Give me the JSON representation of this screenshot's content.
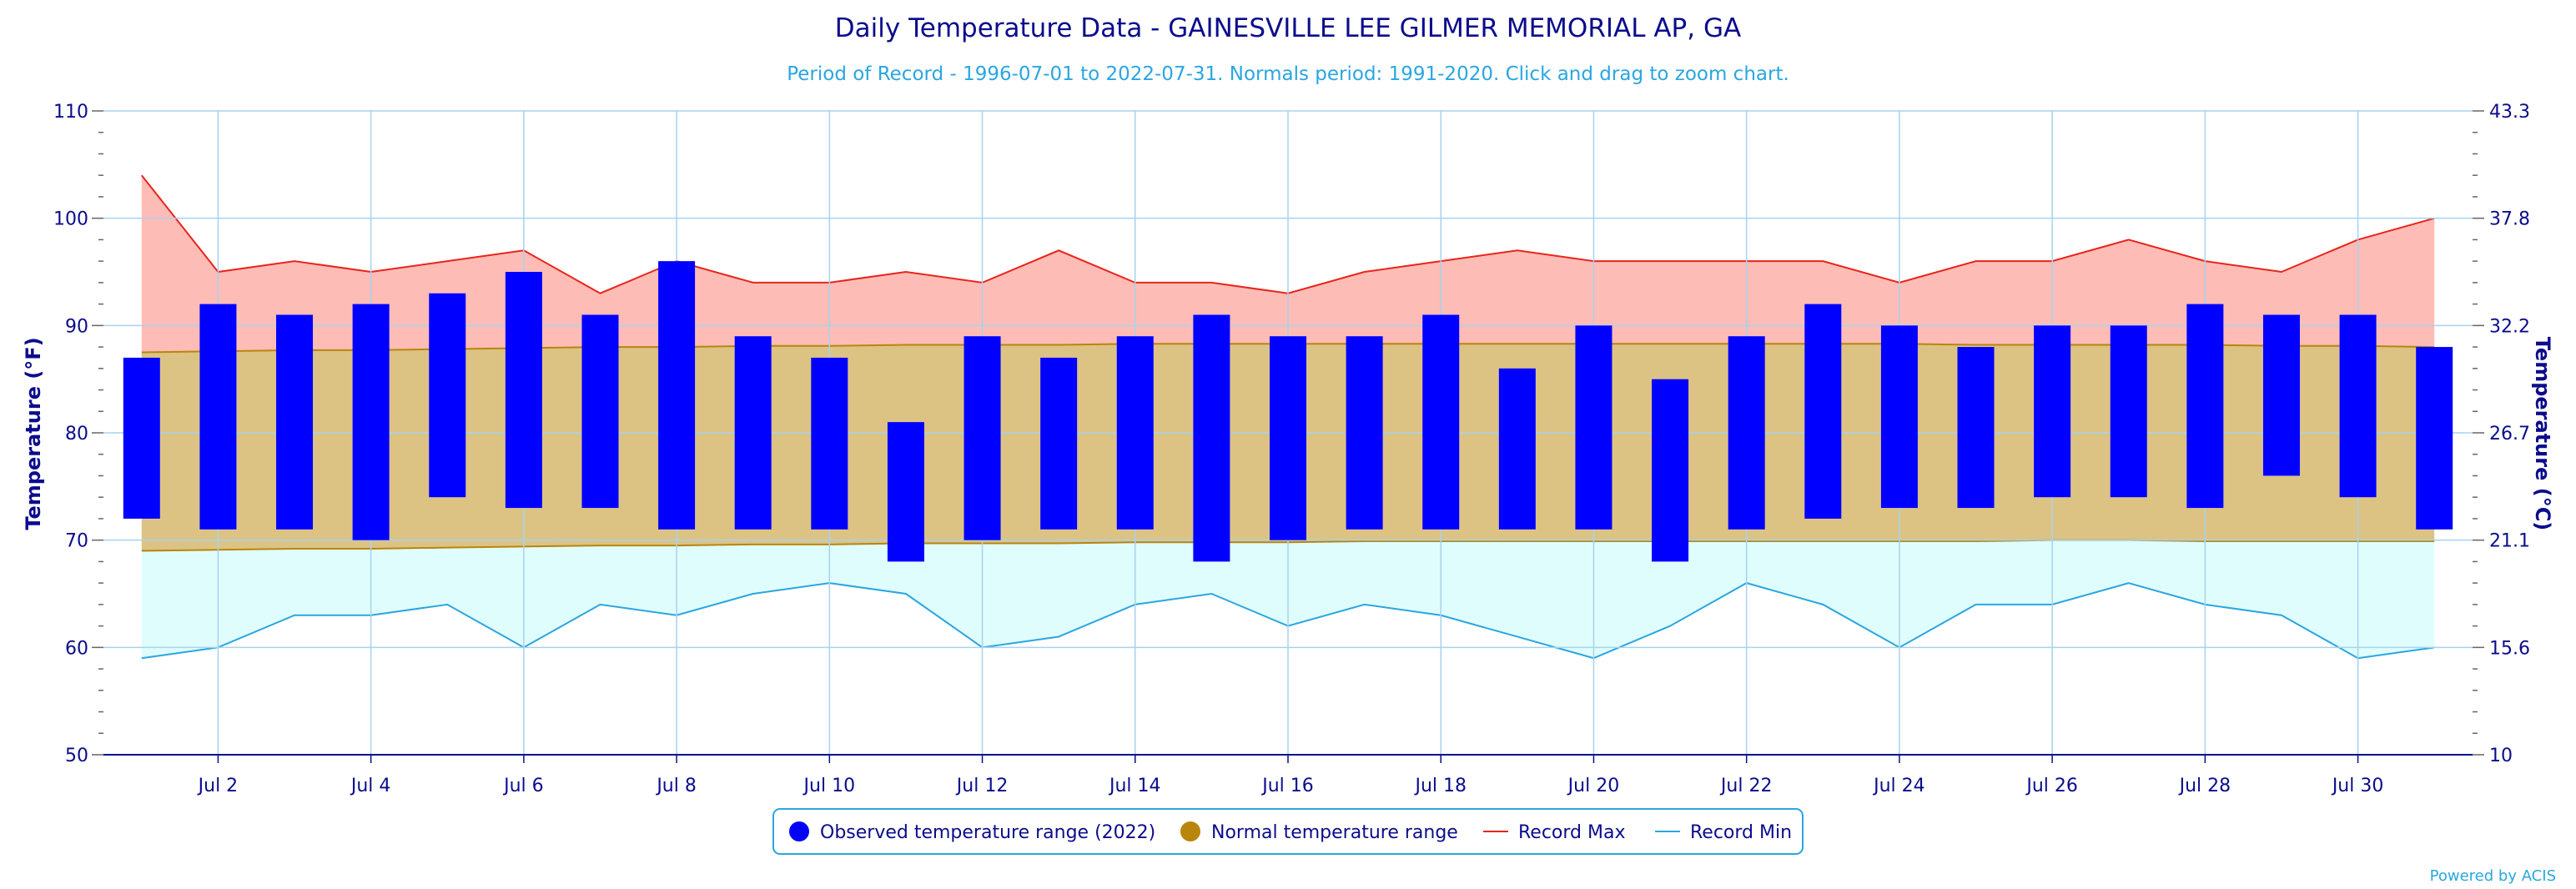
{
  "chart_data": {
    "type": "bar",
    "title": "Daily Temperature Data - GAINESVILLE LEE GILMER MEMORIAL AP, GA",
    "subtitle": "Period of Record - 1996-07-01 to 2022-07-31. Normals period: 1991-2020. Click and drag to zoom chart.",
    "ylabel": "Temperature (°F)",
    "ylabel_right": "Temperature (°C)",
    "ylim": [
      50,
      110
    ],
    "yticks": [
      "50",
      "60",
      "70",
      "80",
      "90",
      "100",
      "110"
    ],
    "yticks_right": [
      "10",
      "15.6",
      "21.1",
      "26.7",
      "32.2",
      "37.8",
      "43.3"
    ],
    "x_tick_labels": [
      "Jul 2",
      "Jul 4",
      "Jul 6",
      "Jul 8",
      "Jul 10",
      "Jul 12",
      "Jul 14",
      "Jul 16",
      "Jul 18",
      "Jul 20",
      "Jul 22",
      "Jul 24",
      "Jul 26",
      "Jul 28",
      "Jul 30"
    ],
    "x_tick_days": [
      2,
      4,
      6,
      8,
      10,
      12,
      14,
      16,
      18,
      20,
      22,
      24,
      26,
      28,
      30
    ],
    "days": [
      1,
      2,
      3,
      4,
      5,
      6,
      7,
      8,
      9,
      10,
      11,
      12,
      13,
      14,
      15,
      16,
      17,
      18,
      19,
      20,
      21,
      22,
      23,
      24,
      25,
      26,
      27,
      28,
      29,
      30,
      31
    ],
    "series": [
      {
        "name": "Observed temperature range (2022)",
        "low": [
          72,
          71,
          71,
          70,
          74,
          73,
          73,
          71,
          71,
          71,
          68,
          70,
          71,
          71,
          68,
          70,
          71,
          71,
          71,
          71,
          68,
          71,
          72,
          73,
          73,
          74,
          74,
          73,
          76,
          74,
          71
        ],
        "high": [
          87,
          92,
          91,
          92,
          93,
          95,
          91,
          96,
          89,
          87,
          81,
          89,
          87,
          89,
          91,
          89,
          89,
          91,
          86,
          90,
          85,
          89,
          92,
          90,
          88,
          90,
          90,
          92,
          91,
          91,
          88
        ]
      },
      {
        "name": "Normal temperature range",
        "low": [
          69.0,
          69.1,
          69.2,
          69.2,
          69.3,
          69.4,
          69.5,
          69.5,
          69.6,
          69.6,
          69.7,
          69.7,
          69.7,
          69.8,
          69.8,
          69.8,
          69.9,
          69.9,
          69.9,
          69.9,
          69.9,
          69.9,
          69.9,
          69.9,
          69.9,
          70.0,
          70.0,
          69.9,
          69.9,
          69.9,
          69.9
        ],
        "high": [
          87.5,
          87.6,
          87.7,
          87.7,
          87.8,
          87.9,
          88.0,
          88.0,
          88.1,
          88.1,
          88.2,
          88.2,
          88.2,
          88.3,
          88.3,
          88.3,
          88.3,
          88.3,
          88.3,
          88.3,
          88.3,
          88.3,
          88.3,
          88.3,
          88.2,
          88.2,
          88.2,
          88.2,
          88.1,
          88.1,
          88.0
        ]
      },
      {
        "name": "Record Max",
        "values": [
          104,
          95,
          96,
          95,
          96,
          97,
          93,
          96,
          94,
          94,
          95,
          94,
          97,
          94,
          94,
          93,
          95,
          96,
          97,
          96,
          96,
          96,
          96,
          94,
          96,
          96,
          98,
          96,
          95,
          98,
          100
        ]
      },
      {
        "name": "Record Min",
        "values": [
          59,
          60,
          63,
          63,
          64,
          60,
          64,
          63,
          65,
          66,
          65,
          60,
          61,
          64,
          65,
          62,
          64,
          63,
          61,
          59,
          62,
          66,
          64,
          60,
          64,
          64,
          66,
          64,
          63,
          59,
          60
        ]
      }
    ],
    "colors": {
      "observed": "#0000ff",
      "normal_fill": "#dcc384",
      "normal_line": "#b8860b",
      "legend_normal": "#b8860b",
      "record_max_fill": "#fdbcb6",
      "record_max_line": "#e8251c",
      "record_min_fill": "#e0fdfd",
      "record_min_line": "#2aa6e0",
      "grid": "#a8d2ee",
      "text": "#0b0c8c"
    },
    "grid": true,
    "legend_position": "bottom-center",
    "credit": "Powered by ACIS"
  }
}
